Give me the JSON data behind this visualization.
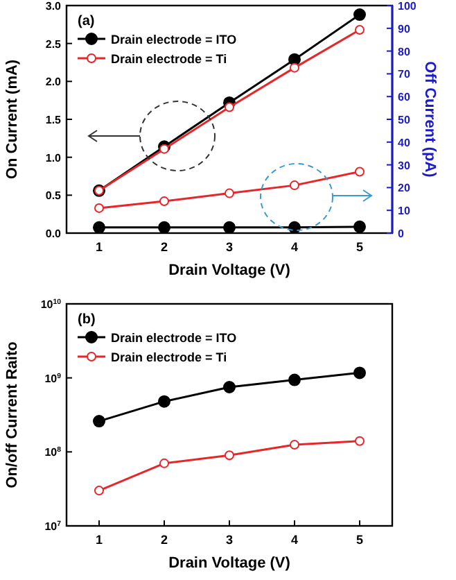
{
  "chart_data": [
    {
      "type": "line",
      "annotations": [
        "(a)"
      ],
      "xlabel": "Drain Voltage (V)",
      "ylabel": "On Current (mA)",
      "y2label": "Off Current (pA)",
      "x": [
        1,
        2,
        3,
        4,
        5
      ],
      "xlim": [
        0.5,
        5.5
      ],
      "xticks": [
        1,
        2,
        3,
        4,
        5
      ],
      "ylim": [
        0,
        3
      ],
      "yticks": [
        {
          "value": 0,
          "label": "0.0"
        },
        0.5,
        {
          "value": 1,
          "label": "1.0"
        },
        1.5,
        {
          "value": 2,
          "label": "2.0"
        },
        2.5,
        {
          "value": 3,
          "label": "3.0"
        }
      ],
      "y2lim": [
        0,
        100
      ],
      "y2ticks": [
        0,
        10,
        20,
        30,
        40,
        50,
        60,
        70,
        80,
        90,
        100
      ],
      "marker": "circle",
      "line_style": "solid",
      "legend": "top left",
      "grid": false,
      "series": [
        {
          "name": "Drain electrode = ITO",
          "color": "#000000",
          "values": [
            0.56,
            1.14,
            1.72,
            2.29,
            2.88
          ]
        },
        {
          "name": "Drain electrode = Ti",
          "color": "#e8262a",
          "values": [
            0.56,
            1.11,
            1.66,
            2.18,
            2.68
          ]
        },
        {
          "color": "#000000",
          "axis": "y2",
          "values": [
            2.5,
            2.5,
            2.5,
            2.5,
            2.8
          ]
        },
        {
          "color": "#e8262a",
          "axis": "y2",
          "values": [
            11,
            14,
            17.5,
            21,
            27
          ]
        }
      ]
    },
    {
      "type": "line",
      "annotations": [
        "(b)"
      ],
      "xlabel": "Drain Voltage (V)",
      "ylabel": "On/off Current Raito",
      "x": [
        1,
        2,
        3,
        4,
        5
      ],
      "xlim": [
        0.5,
        5.5
      ],
      "xticks": [
        1,
        2,
        3,
        4,
        5
      ],
      "log": "y",
      "ylim": [
        10000000,
        10000000000
      ],
      "yticks": [
        {
          "value": 10000000,
          "label": "10$^{7}$"
        },
        {
          "value": 100000000,
          "label": "10$^{8}$"
        },
        {
          "value": 1000000000,
          "label": "10$^{9}$"
        },
        {
          "value": 10000000000,
          "label": "10$^{10}$"
        }
      ],
      "marker": "circle",
      "line_style": "solid",
      "legend": "top left",
      "grid": false,
      "series": [
        {
          "name": "Drain electrode = ITO",
          "color": "#000000",
          "values": [
            260000000,
            480000000,
            750000000,
            940000000,
            1170000000
          ]
        },
        {
          "name": "Drain electrode = Ti",
          "color": "#e8262a",
          "values": [
            30000000,
            70000000,
            90000000,
            125000000,
            140000000
          ]
        }
      ]
    }
  ]
}
